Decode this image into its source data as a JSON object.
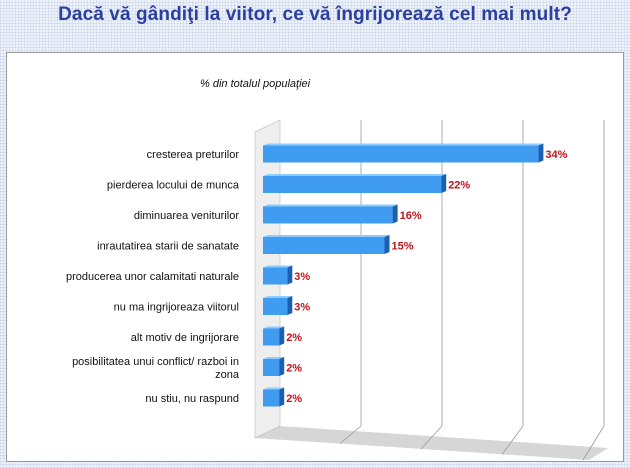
{
  "page": {
    "title": "Dacă vă gândiţi la viitor, ce vă îngrijorează cel mai mult?"
  },
  "colors": {
    "bar_front": "#3f9cf0",
    "bar_top": "#8ecbff",
    "bar_side": "#1b5fb0",
    "value_label": "#c0141c",
    "title": "#2a3fa0"
  },
  "chart_data": {
    "type": "bar",
    "orientation": "horizontal",
    "title": "Dacă vă gândiţi la viitor, ce vă îngrijorează cel mai mult?",
    "subtitle": "% din totalul populaţiei",
    "xlabel": "",
    "ylabel": "",
    "xlim": [
      0,
      40
    ],
    "grid": true,
    "legend": "none",
    "unit": "%",
    "categories": [
      "cresterea preturilor",
      "pierderea locului de munca",
      "diminuarea veniturilor",
      "inrautatirea starii de sanatate",
      "producerea unor calamitati naturale",
      "nu ma ingrijoreaza viitorul",
      "alt motiv de ingrijorare",
      "posibilitatea unui conflict/ razboi in zona",
      "nu stiu, nu raspund"
    ],
    "category_lines": [
      [
        "cresterea preturilor"
      ],
      [
        "pierderea locului de munca"
      ],
      [
        "diminuarea veniturilor"
      ],
      [
        "inrautatirea starii de sanatate"
      ],
      [
        "producerea unor calamitati naturale"
      ],
      [
        "nu ma ingrijoreaza viitorul"
      ],
      [
        "alt motiv de ingrijorare"
      ],
      [
        "posibilitatea unui conflict/ razboi in",
        "zona"
      ],
      [
        "nu stiu, nu raspund"
      ]
    ],
    "values": [
      34,
      22,
      16,
      15,
      3,
      3,
      2,
      2,
      2
    ],
    "value_labels": [
      "34%",
      "22%",
      "16%",
      "15%",
      "3%",
      "3%",
      "2%",
      "2%",
      "2%"
    ]
  }
}
